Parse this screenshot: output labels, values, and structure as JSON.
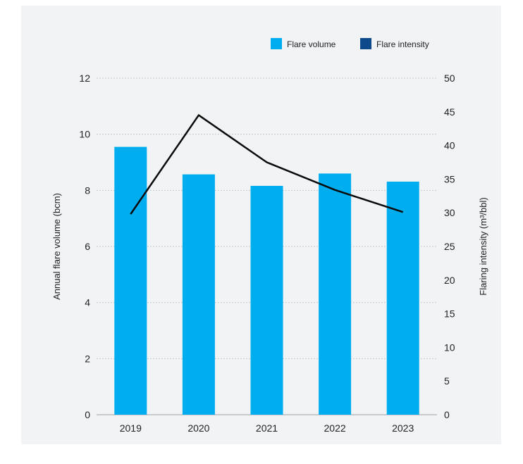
{
  "chart_data": {
    "type": "bar",
    "categories": [
      "2019",
      "2020",
      "2021",
      "2022",
      "2023"
    ],
    "series": [
      {
        "name": "Flare volume",
        "kind": "bar",
        "axis": "left",
        "values": [
          9.55,
          8.57,
          8.16,
          8.6,
          8.31
        ],
        "color": "#00aeef"
      },
      {
        "name": "Flare intensity",
        "kind": "line",
        "axis": "right",
        "values": [
          29.8,
          44.5,
          37.5,
          33.4,
          30.1
        ],
        "color": "#0a0a0a",
        "legend_color": "#0c4a8c"
      }
    ],
    "ylabel_left": "Annual flare volume (bcm)",
    "ylabel_right": "Flaring intensity (m³/bbl)",
    "ylim_left": [
      0,
      12
    ],
    "yticks_left": [
      0,
      2,
      4,
      6,
      8,
      10,
      12
    ],
    "ylim_right": [
      0,
      50
    ],
    "yticks_right": [
      0,
      5,
      10,
      15,
      20,
      25,
      30,
      35,
      40,
      45,
      50
    ],
    "grid": "horizontal-dotted",
    "legend_position": "top-right"
  },
  "colors": {
    "background": "#f1f3f5",
    "grid": "#b8bcc2",
    "text": "#222222"
  }
}
